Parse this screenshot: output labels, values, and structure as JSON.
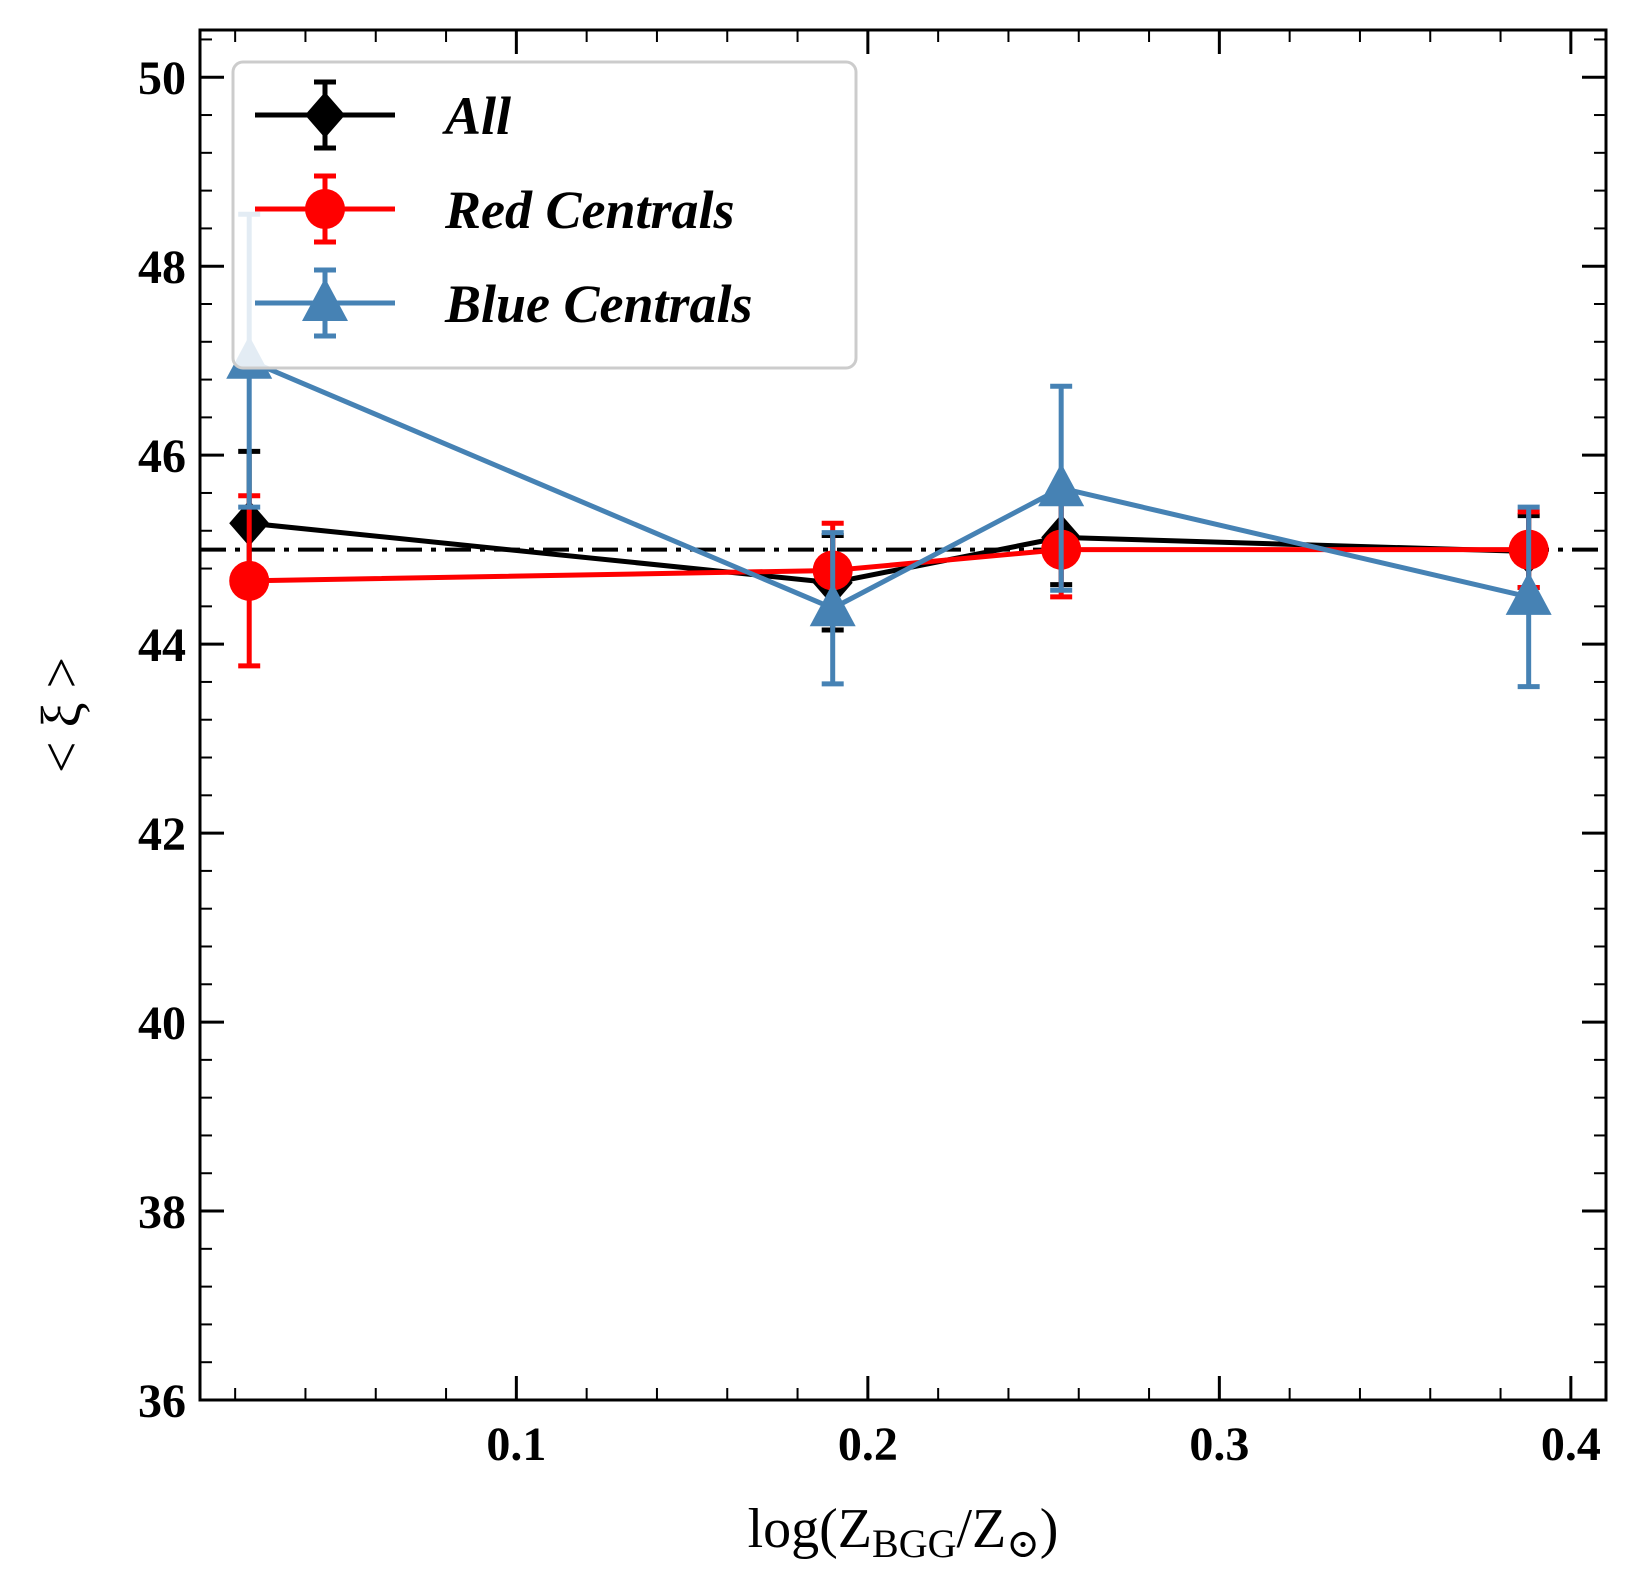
{
  "chart_data": {
    "type": "line",
    "xlabel": {
      "prefix": "log(Z",
      "sub1": "BGG",
      "mid": "/Z",
      "sub2": "⊙",
      "suffix": ")"
    },
    "ylabel": "< ξ >",
    "xlim": [
      0.01,
      0.41
    ],
    "ylim": [
      36,
      50.5
    ],
    "xticks": [
      0.1,
      0.2,
      0.3,
      0.4
    ],
    "xtick_labels": [
      "0.1",
      "0.2",
      "0.3",
      "0.4"
    ],
    "yticks": [
      36,
      38,
      40,
      42,
      44,
      46,
      48,
      50
    ],
    "ytick_labels": [
      "36",
      "38",
      "40",
      "42",
      "44",
      "46",
      "48",
      "50"
    ],
    "x_minor_step": 0.02,
    "y_minor_step": 0.4,
    "reference_line": {
      "y": 45.0,
      "style": "dashdot",
      "color": "#000000"
    },
    "legend_position": "upper-left",
    "series": [
      {
        "name": "All",
        "color": "#000000",
        "marker": "diamond",
        "x": [
          0.024,
          0.19,
          0.255,
          0.388
        ],
        "y": [
          45.28,
          44.65,
          45.13,
          44.98
        ],
        "yerr": [
          0.76,
          0.5,
          0.5,
          0.38
        ]
      },
      {
        "name": "Red Centrals",
        "color": "#ff0000",
        "marker": "circle",
        "x": [
          0.024,
          0.19,
          0.255,
          0.388
        ],
        "y": [
          44.67,
          44.78,
          45.0,
          45.0
        ],
        "yerr": [
          0.9,
          0.5,
          0.5,
          0.4
        ]
      },
      {
        "name": "Blue Centrals",
        "color": "#4682b4",
        "marker": "triangle",
        "x": [
          0.024,
          0.19,
          0.255,
          0.388
        ],
        "y": [
          47.0,
          44.38,
          45.65,
          44.5
        ],
        "yerr": [
          1.55,
          0.8,
          1.08,
          0.95
        ]
      }
    ]
  }
}
